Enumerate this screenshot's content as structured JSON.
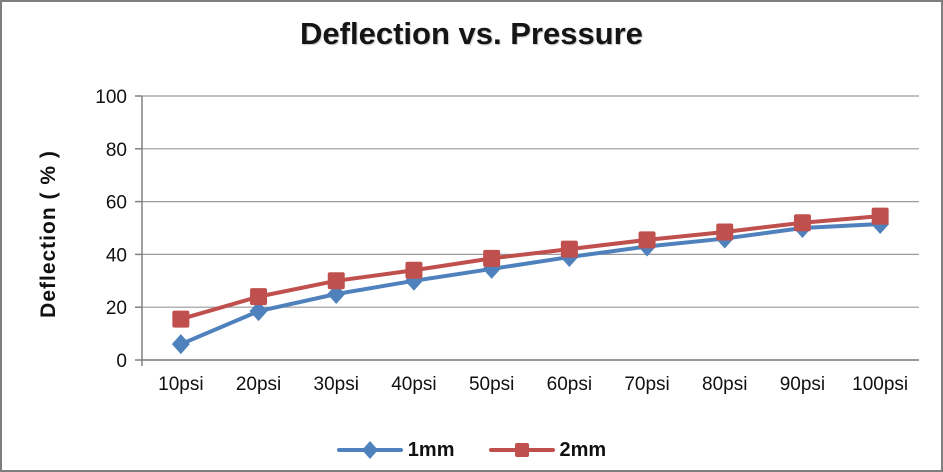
{
  "chart_data": {
    "type": "line",
    "title": "Deflection vs. Pressure",
    "xlabel": "",
    "ylabel": "Deflection ( % )",
    "categories": [
      "10psi",
      "20psi",
      "30psi",
      "40psi",
      "50psi",
      "60psi",
      "70psi",
      "80psi",
      "90psi",
      "100psi"
    ],
    "series": [
      {
        "name": "1mm",
        "marker": "diamond",
        "color": "#4F81BD",
        "values": [
          6,
          18.5,
          25,
          30,
          34.5,
          39,
          43,
          46,
          50,
          51.5
        ]
      },
      {
        "name": "2mm",
        "marker": "square",
        "color": "#C0504D",
        "values": [
          15.5,
          24,
          30,
          34,
          38.5,
          42,
          45.5,
          48.5,
          52,
          54.5
        ]
      }
    ],
    "ylim": [
      0,
      100
    ],
    "ytick_step": 20,
    "grid": true,
    "legend_position": "bottom",
    "grid_color": "#9a9a9a",
    "axis_color": "#808080"
  }
}
